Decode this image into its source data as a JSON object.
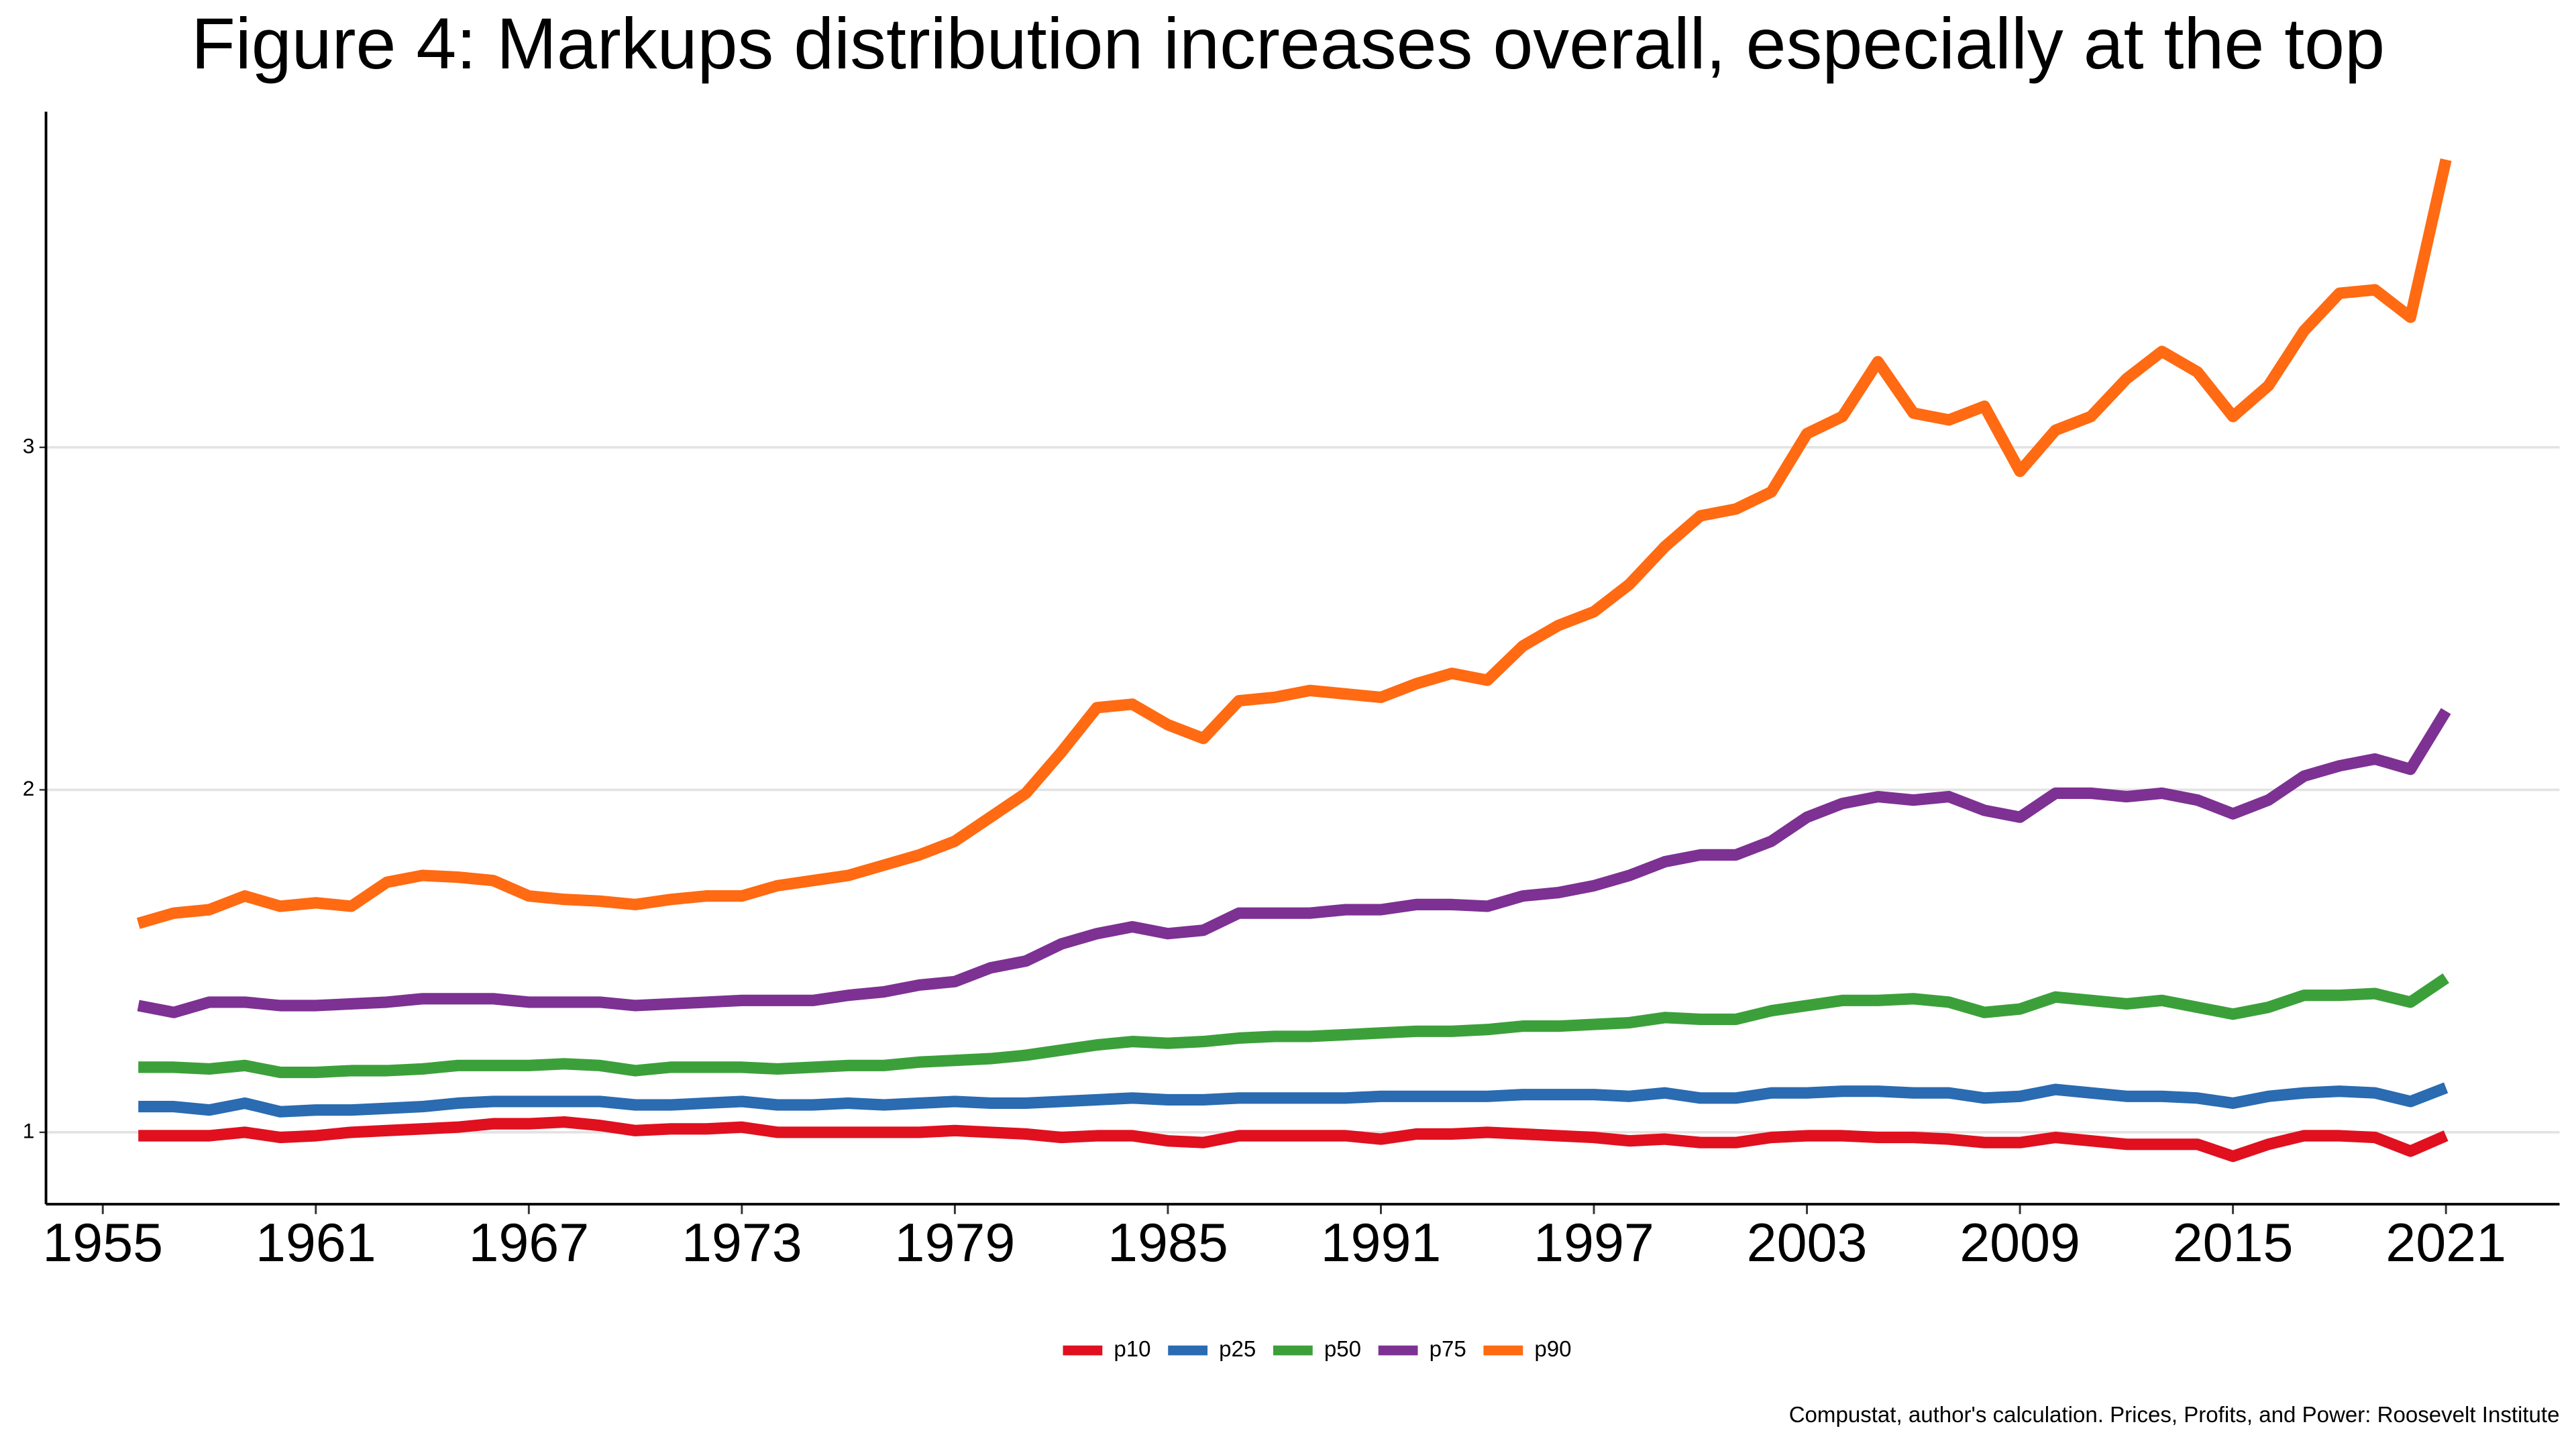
{
  "chart_data": {
    "type": "line",
    "title": "Figure 4: Markups distribution increases overall, especially at the top",
    "caption": "Compustat, author's calculation. Prices, Profits, and Power: Roosevelt Institute",
    "x": [
      1956,
      1957,
      1958,
      1959,
      1960,
      1961,
      1962,
      1963,
      1964,
      1965,
      1966,
      1967,
      1968,
      1969,
      1970,
      1971,
      1972,
      1973,
      1974,
      1975,
      1976,
      1977,
      1978,
      1979,
      1980,
      1981,
      1982,
      1983,
      1984,
      1985,
      1986,
      1987,
      1988,
      1989,
      1990,
      1991,
      1992,
      1993,
      1994,
      1995,
      1996,
      1997,
      1998,
      1999,
      2000,
      2001,
      2002,
      2003,
      2004,
      2005,
      2006,
      2007,
      2008,
      2009,
      2010,
      2011,
      2012,
      2013,
      2014,
      2015,
      2016,
      2017,
      2018,
      2019,
      2020,
      2021
    ],
    "series": [
      {
        "name": "p10",
        "color": "#e0101f",
        "values": [
          0.99,
          0.99,
          0.99,
          1.0,
          0.985,
          0.99,
          1.0,
          1.005,
          1.01,
          1.015,
          1.025,
          1.025,
          1.03,
          1.02,
          1.005,
          1.01,
          1.01,
          1.015,
          1.0,
          1.0,
          1.0,
          1.0,
          1.0,
          1.005,
          1.0,
          0.995,
          0.985,
          0.99,
          0.99,
          0.975,
          0.97,
          0.99,
          0.99,
          0.99,
          0.99,
          0.98,
          0.995,
          0.995,
          1.0,
          0.995,
          0.99,
          0.985,
          0.975,
          0.98,
          0.97,
          0.97,
          0.985,
          0.99,
          0.99,
          0.985,
          0.985,
          0.98,
          0.97,
          0.97,
          0.985,
          0.975,
          0.965,
          0.965,
          0.965,
          0.93,
          0.965,
          0.99,
          0.99,
          0.985,
          0.945,
          0.99
        ]
      },
      {
        "name": "p25",
        "color": "#2a6bb1",
        "values": [
          1.075,
          1.075,
          1.065,
          1.085,
          1.06,
          1.065,
          1.065,
          1.07,
          1.075,
          1.085,
          1.09,
          1.09,
          1.09,
          1.09,
          1.08,
          1.08,
          1.085,
          1.09,
          1.08,
          1.08,
          1.085,
          1.08,
          1.085,
          1.09,
          1.085,
          1.085,
          1.09,
          1.095,
          1.1,
          1.095,
          1.095,
          1.1,
          1.1,
          1.1,
          1.1,
          1.105,
          1.105,
          1.105,
          1.105,
          1.11,
          1.11,
          1.11,
          1.105,
          1.115,
          1.1,
          1.1,
          1.115,
          1.115,
          1.12,
          1.12,
          1.115,
          1.115,
          1.1,
          1.105,
          1.125,
          1.115,
          1.105,
          1.105,
          1.1,
          1.085,
          1.105,
          1.115,
          1.12,
          1.115,
          1.09,
          1.13
        ]
      },
      {
        "name": "p50",
        "color": "#3ca03a",
        "values": [
          1.19,
          1.19,
          1.185,
          1.195,
          1.175,
          1.175,
          1.18,
          1.18,
          1.185,
          1.195,
          1.195,
          1.195,
          1.2,
          1.195,
          1.18,
          1.19,
          1.19,
          1.19,
          1.185,
          1.19,
          1.195,
          1.195,
          1.205,
          1.21,
          1.215,
          1.225,
          1.24,
          1.255,
          1.265,
          1.26,
          1.265,
          1.275,
          1.28,
          1.28,
          1.285,
          1.29,
          1.295,
          1.295,
          1.3,
          1.31,
          1.31,
          1.315,
          1.32,
          1.335,
          1.33,
          1.33,
          1.355,
          1.37,
          1.385,
          1.385,
          1.39,
          1.38,
          1.35,
          1.36,
          1.395,
          1.385,
          1.375,
          1.385,
          1.365,
          1.345,
          1.365,
          1.4,
          1.4,
          1.405,
          1.38,
          1.45
        ]
      },
      {
        "name": "p75",
        "color": "#7d3193",
        "values": [
          1.37,
          1.35,
          1.38,
          1.38,
          1.37,
          1.37,
          1.375,
          1.38,
          1.39,
          1.39,
          1.39,
          1.38,
          1.38,
          1.38,
          1.37,
          1.375,
          1.38,
          1.385,
          1.385,
          1.385,
          1.4,
          1.41,
          1.43,
          1.44,
          1.48,
          1.5,
          1.55,
          1.58,
          1.6,
          1.58,
          1.59,
          1.64,
          1.64,
          1.64,
          1.65,
          1.65,
          1.665,
          1.665,
          1.66,
          1.69,
          1.7,
          1.72,
          1.75,
          1.79,
          1.81,
          1.81,
          1.85,
          1.92,
          1.96,
          1.98,
          1.97,
          1.98,
          1.94,
          1.92,
          1.99,
          1.99,
          1.98,
          1.99,
          1.97,
          1.93,
          1.97,
          2.04,
          2.07,
          2.09,
          2.06,
          2.23
        ]
      },
      {
        "name": "p90",
        "color": "#ff6a12",
        "values": [
          1.61,
          1.64,
          1.65,
          1.69,
          1.66,
          1.67,
          1.66,
          1.73,
          1.75,
          1.745,
          1.735,
          1.69,
          1.68,
          1.675,
          1.665,
          1.68,
          1.69,
          1.69,
          1.72,
          1.735,
          1.75,
          1.78,
          1.81,
          1.85,
          1.92,
          1.99,
          2.11,
          2.24,
          2.25,
          2.19,
          2.15,
          2.26,
          2.27,
          2.29,
          2.28,
          2.27,
          2.31,
          2.34,
          2.32,
          2.42,
          2.48,
          2.52,
          2.6,
          2.71,
          2.8,
          2.82,
          2.87,
          3.04,
          3.09,
          3.25,
          3.1,
          3.08,
          3.12,
          2.93,
          3.05,
          3.09,
          3.2,
          3.28,
          3.22,
          3.09,
          3.18,
          3.34,
          3.45,
          3.46,
          3.38,
          3.84
        ]
      }
    ],
    "xlim": [
      1953.4,
      2024.2
    ],
    "xticks": [
      1955,
      1961,
      1967,
      1973,
      1979,
      1985,
      1991,
      1997,
      2003,
      2009,
      2015,
      2021
    ],
    "ylim": [
      0.79,
      3.98
    ],
    "yticks": [
      1,
      2,
      3
    ],
    "grid": true,
    "legend": "bottom"
  }
}
